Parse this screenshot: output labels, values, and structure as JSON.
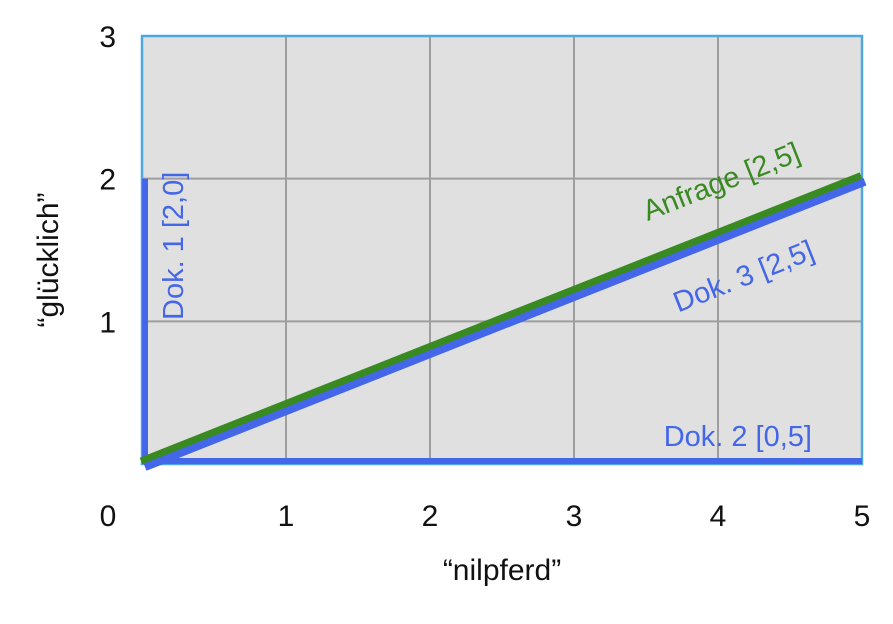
{
  "chart_data": {
    "type": "line",
    "xlabel": "“nilpferd”",
    "ylabel": "“glücklich”",
    "xlim": [
      0,
      5
    ],
    "ylim": [
      0,
      3
    ],
    "xticks": [
      "0",
      "1",
      "2",
      "3",
      "4",
      "5"
    ],
    "yticks": [
      "0",
      "1",
      "2",
      "3"
    ],
    "grid": true,
    "background": "#e0e0e0",
    "gridColor": "#9e9e9e",
    "frameColor": "#4ea8e0",
    "series": [
      {
        "name": "Dok. 1 [2,0]",
        "color": "#4466e8",
        "points": [
          [
            0,
            0
          ],
          [
            0,
            2
          ]
        ]
      },
      {
        "name": "Dok. 2 [0,5]",
        "color": "#4466e8",
        "points": [
          [
            0,
            0
          ],
          [
            5,
            0
          ]
        ]
      },
      {
        "name": "Dok. 3 [2,5]",
        "color": "#4466e8",
        "points": [
          [
            0,
            0
          ],
          [
            5,
            2
          ]
        ]
      },
      {
        "name": "Anfrage [2,5]",
        "color": "#3a8a22",
        "points": [
          [
            0,
            0
          ],
          [
            5,
            2
          ]
        ]
      }
    ]
  }
}
